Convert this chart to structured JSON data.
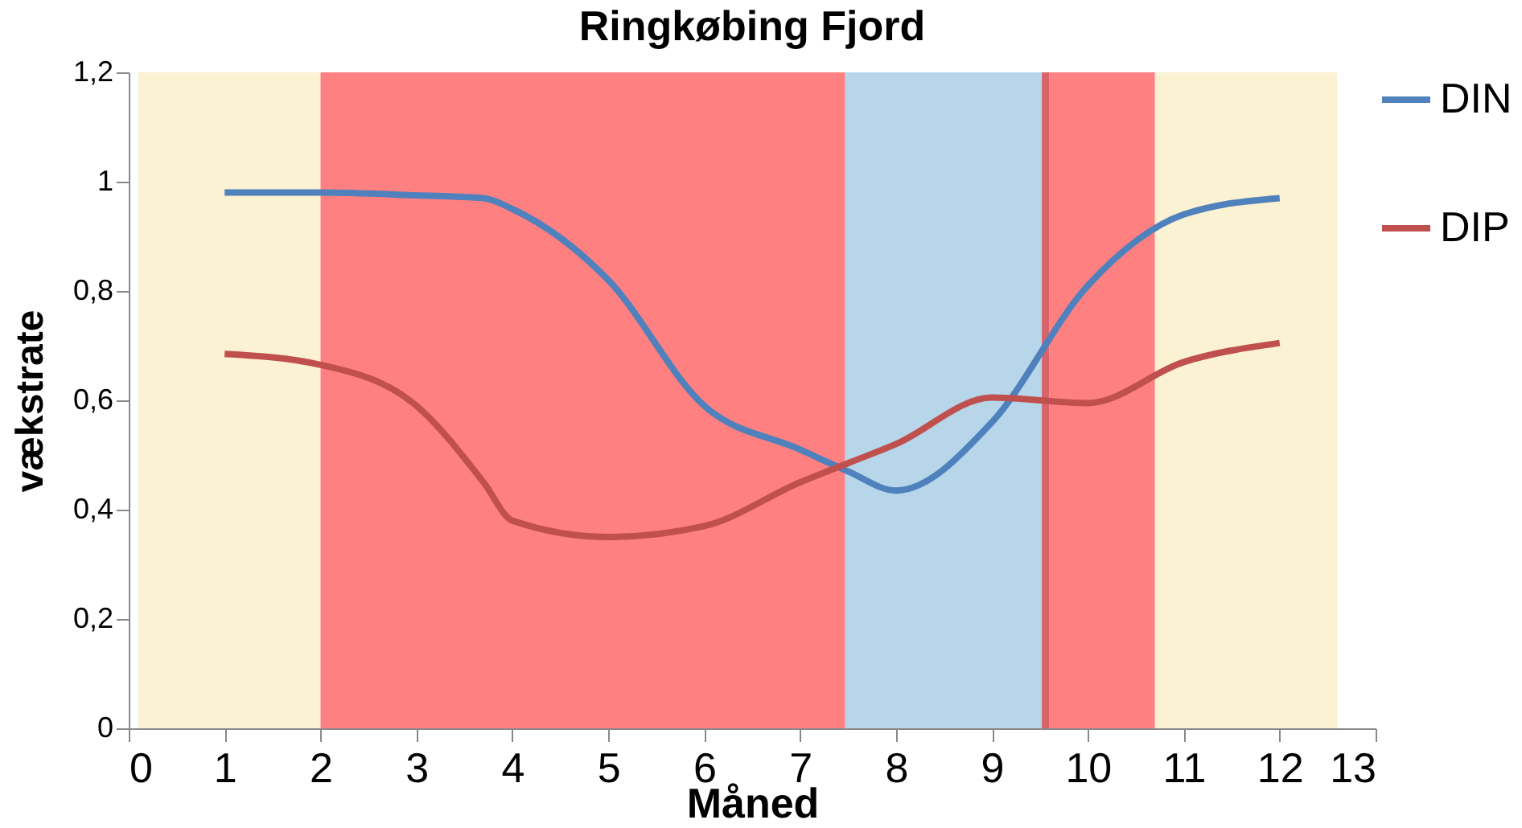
{
  "chart_data": {
    "type": "line",
    "title": "Ringkøbing Fjord",
    "xlabel": "Måned",
    "ylabel": "vækstrate",
    "x": [
      1,
      2,
      3,
      3.7,
      4,
      5,
      6,
      7,
      7.5,
      8,
      9,
      10,
      11,
      12
    ],
    "series": [
      {
        "name": "DIN",
        "color": "#4f81bd",
        "values": [
          0.98,
          0.98,
          0.975,
          0.97,
          0.95,
          0.82,
          0.59,
          0.51,
          0.47,
          0.435,
          0.56,
          0.81,
          0.94,
          0.97
        ]
      },
      {
        "name": "DIP",
        "color": "#c0504d",
        "values": [
          0.685,
          0.665,
          0.59,
          0.45,
          0.38,
          0.35,
          0.37,
          0.45,
          0.485,
          0.52,
          0.605,
          0.595,
          0.67,
          0.705
        ]
      }
    ],
    "bands": [
      {
        "axis": "x",
        "from": 0.1,
        "to": 2,
        "color": "#fbf1d3"
      },
      {
        "axis": "x",
        "from": 2,
        "to": 7.47,
        "color": "#ff8080"
      },
      {
        "axis": "x",
        "from": 7.47,
        "to": 9.52,
        "color": "#b7d6ea"
      },
      {
        "axis": "x",
        "from": 9.52,
        "to": 9.6,
        "color": "#d9636a"
      },
      {
        "axis": "x",
        "from": 9.6,
        "to": 10.7,
        "color": "#ff8080"
      },
      {
        "axis": "x",
        "from": 10.7,
        "to": 12.6,
        "color": "#fbf1d3"
      }
    ],
    "xlim": [
      0,
      13
    ],
    "xticks": [
      0,
      1,
      2,
      3,
      4,
      5,
      6,
      7,
      8,
      9,
      10,
      11,
      12,
      13
    ],
    "ylim": [
      0,
      1.2
    ],
    "yticks": [
      0,
      {
        "value": 0.2,
        "label": "0,2"
      },
      {
        "value": 0.4,
        "label": "0,4"
      },
      {
        "value": 0.6,
        "label": "0,6"
      },
      {
        "value": 0.8,
        "label": "0,8"
      },
      1,
      {
        "value": 1.2,
        "label": "1,2"
      }
    ],
    "grid": false,
    "legend": "right",
    "marker": "none",
    "line_style": "solid"
  }
}
